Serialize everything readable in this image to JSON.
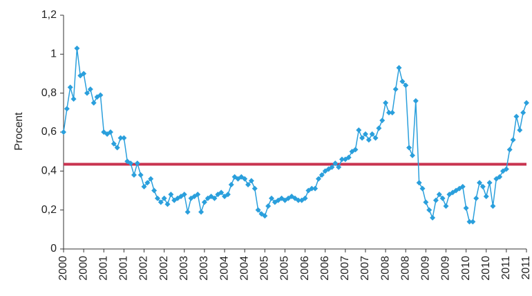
{
  "chart_data": {
    "type": "line",
    "y_label": "Procent",
    "x": [
      0,
      1,
      2,
      3,
      4,
      5,
      6,
      7,
      8,
      9,
      10,
      11,
      12,
      13,
      14,
      15,
      16,
      17,
      18,
      19,
      20,
      21,
      22,
      23,
      24,
      25,
      26,
      27,
      28,
      29,
      30,
      31,
      32,
      33,
      34,
      35,
      36,
      37,
      38,
      39,
      40,
      41,
      42,
      43,
      44,
      45,
      46,
      47,
      48,
      49,
      50,
      51,
      52,
      53,
      54,
      55,
      56,
      57,
      58,
      59,
      60,
      61,
      62,
      63,
      64,
      65,
      66,
      67,
      68,
      69,
      70,
      71,
      72,
      73,
      74,
      75,
      76,
      77,
      78,
      79,
      80,
      81,
      82,
      83,
      84,
      85,
      86,
      87,
      88,
      89,
      90,
      91,
      92,
      93,
      94,
      95,
      96,
      97,
      98,
      99,
      100,
      101,
      102,
      103,
      104,
      105,
      106,
      107,
      108,
      109,
      110,
      111,
      112,
      113,
      114,
      115,
      116,
      117,
      118,
      119,
      120,
      121,
      122,
      123,
      124,
      125,
      126,
      127,
      128,
      129,
      130,
      131,
      132,
      133,
      134,
      135,
      136,
      137,
      138
    ],
    "series": [
      {
        "color": "#2a9fdc",
        "values": [
          0.6,
          0.72,
          0.83,
          0.77,
          1.03,
          0.89,
          0.9,
          0.8,
          0.82,
          0.75,
          0.78,
          0.79,
          0.6,
          0.59,
          0.6,
          0.54,
          0.52,
          0.57,
          0.57,
          0.45,
          0.44,
          0.38,
          0.44,
          0.38,
          0.32,
          0.34,
          0.36,
          0.3,
          0.26,
          0.24,
          0.26,
          0.23,
          0.28,
          0.25,
          0.26,
          0.27,
          0.28,
          0.19,
          0.26,
          0.27,
          0.28,
          0.19,
          0.24,
          0.26,
          0.27,
          0.26,
          0.28,
          0.29,
          0.27,
          0.28,
          0.33,
          0.37,
          0.36,
          0.37,
          0.36,
          0.33,
          0.35,
          0.31,
          0.2,
          0.18,
          0.17,
          0.22,
          0.26,
          0.24,
          0.25,
          0.26,
          0.25,
          0.26,
          0.27,
          0.26,
          0.25,
          0.25,
          0.26,
          0.3,
          0.31,
          0.31,
          0.36,
          0.38,
          0.4,
          0.41,
          0.42,
          0.44,
          0.42,
          0.46,
          0.46,
          0.47,
          0.5,
          0.51,
          0.61,
          0.57,
          0.59,
          0.56,
          0.59,
          0.57,
          0.62,
          0.66,
          0.75,
          0.7,
          0.7,
          0.82,
          0.93,
          0.86,
          0.84,
          0.52,
          0.48,
          0.76,
          0.34,
          0.31,
          0.24,
          0.2,
          0.16,
          0.25,
          0.28,
          0.26,
          0.22,
          0.28,
          0.29,
          0.3,
          0.31,
          0.32,
          0.21,
          0.14,
          0.14,
          0.26,
          0.34,
          0.32,
          0.27,
          0.34,
          0.22,
          0.36,
          0.37,
          0.4,
          0.41,
          0.51,
          0.56,
          0.68,
          0.61,
          0.7,
          0.75
        ]
      }
    ],
    "hline": {
      "value": 0.435,
      "color": "#c8334f"
    },
    "xlim": [
      0,
      138
    ],
    "xticks": [
      {
        "value": 0,
        "label": "2000"
      },
      {
        "value": 6,
        "label": "2000"
      },
      {
        "value": 12,
        "label": "2001"
      },
      {
        "value": 18,
        "label": "2001"
      },
      {
        "value": 24,
        "label": "2002"
      },
      {
        "value": 30,
        "label": "2002"
      },
      {
        "value": 36,
        "label": "2003"
      },
      {
        "value": 42,
        "label": "2003"
      },
      {
        "value": 48,
        "label": "2004"
      },
      {
        "value": 54,
        "label": "2004"
      },
      {
        "value": 60,
        "label": "2005"
      },
      {
        "value": 66,
        "label": "2005"
      },
      {
        "value": 72,
        "label": "2006"
      },
      {
        "value": 78,
        "label": "2006"
      },
      {
        "value": 84,
        "label": "2007"
      },
      {
        "value": 90,
        "label": "2007"
      },
      {
        "value": 96,
        "label": "2008"
      },
      {
        "value": 102,
        "label": "2008"
      },
      {
        "value": 108,
        "label": "2009"
      },
      {
        "value": 114,
        "label": "2009"
      },
      {
        "value": 120,
        "label": "2010"
      },
      {
        "value": 126,
        "label": "2010"
      },
      {
        "value": 132,
        "label": "2011"
      },
      {
        "value": 138,
        "label": "2011"
      }
    ],
    "ylim": [
      0,
      1.2
    ],
    "yticks": [
      0,
      {
        "value": 0.2,
        "label": "0,2"
      },
      {
        "value": 0.4,
        "label": "0,4"
      },
      {
        "value": 0.6,
        "label": "0,6"
      },
      {
        "value": 0.8,
        "label": "0,8"
      },
      1,
      {
        "value": 1.2,
        "label": "1,2"
      }
    ]
  }
}
